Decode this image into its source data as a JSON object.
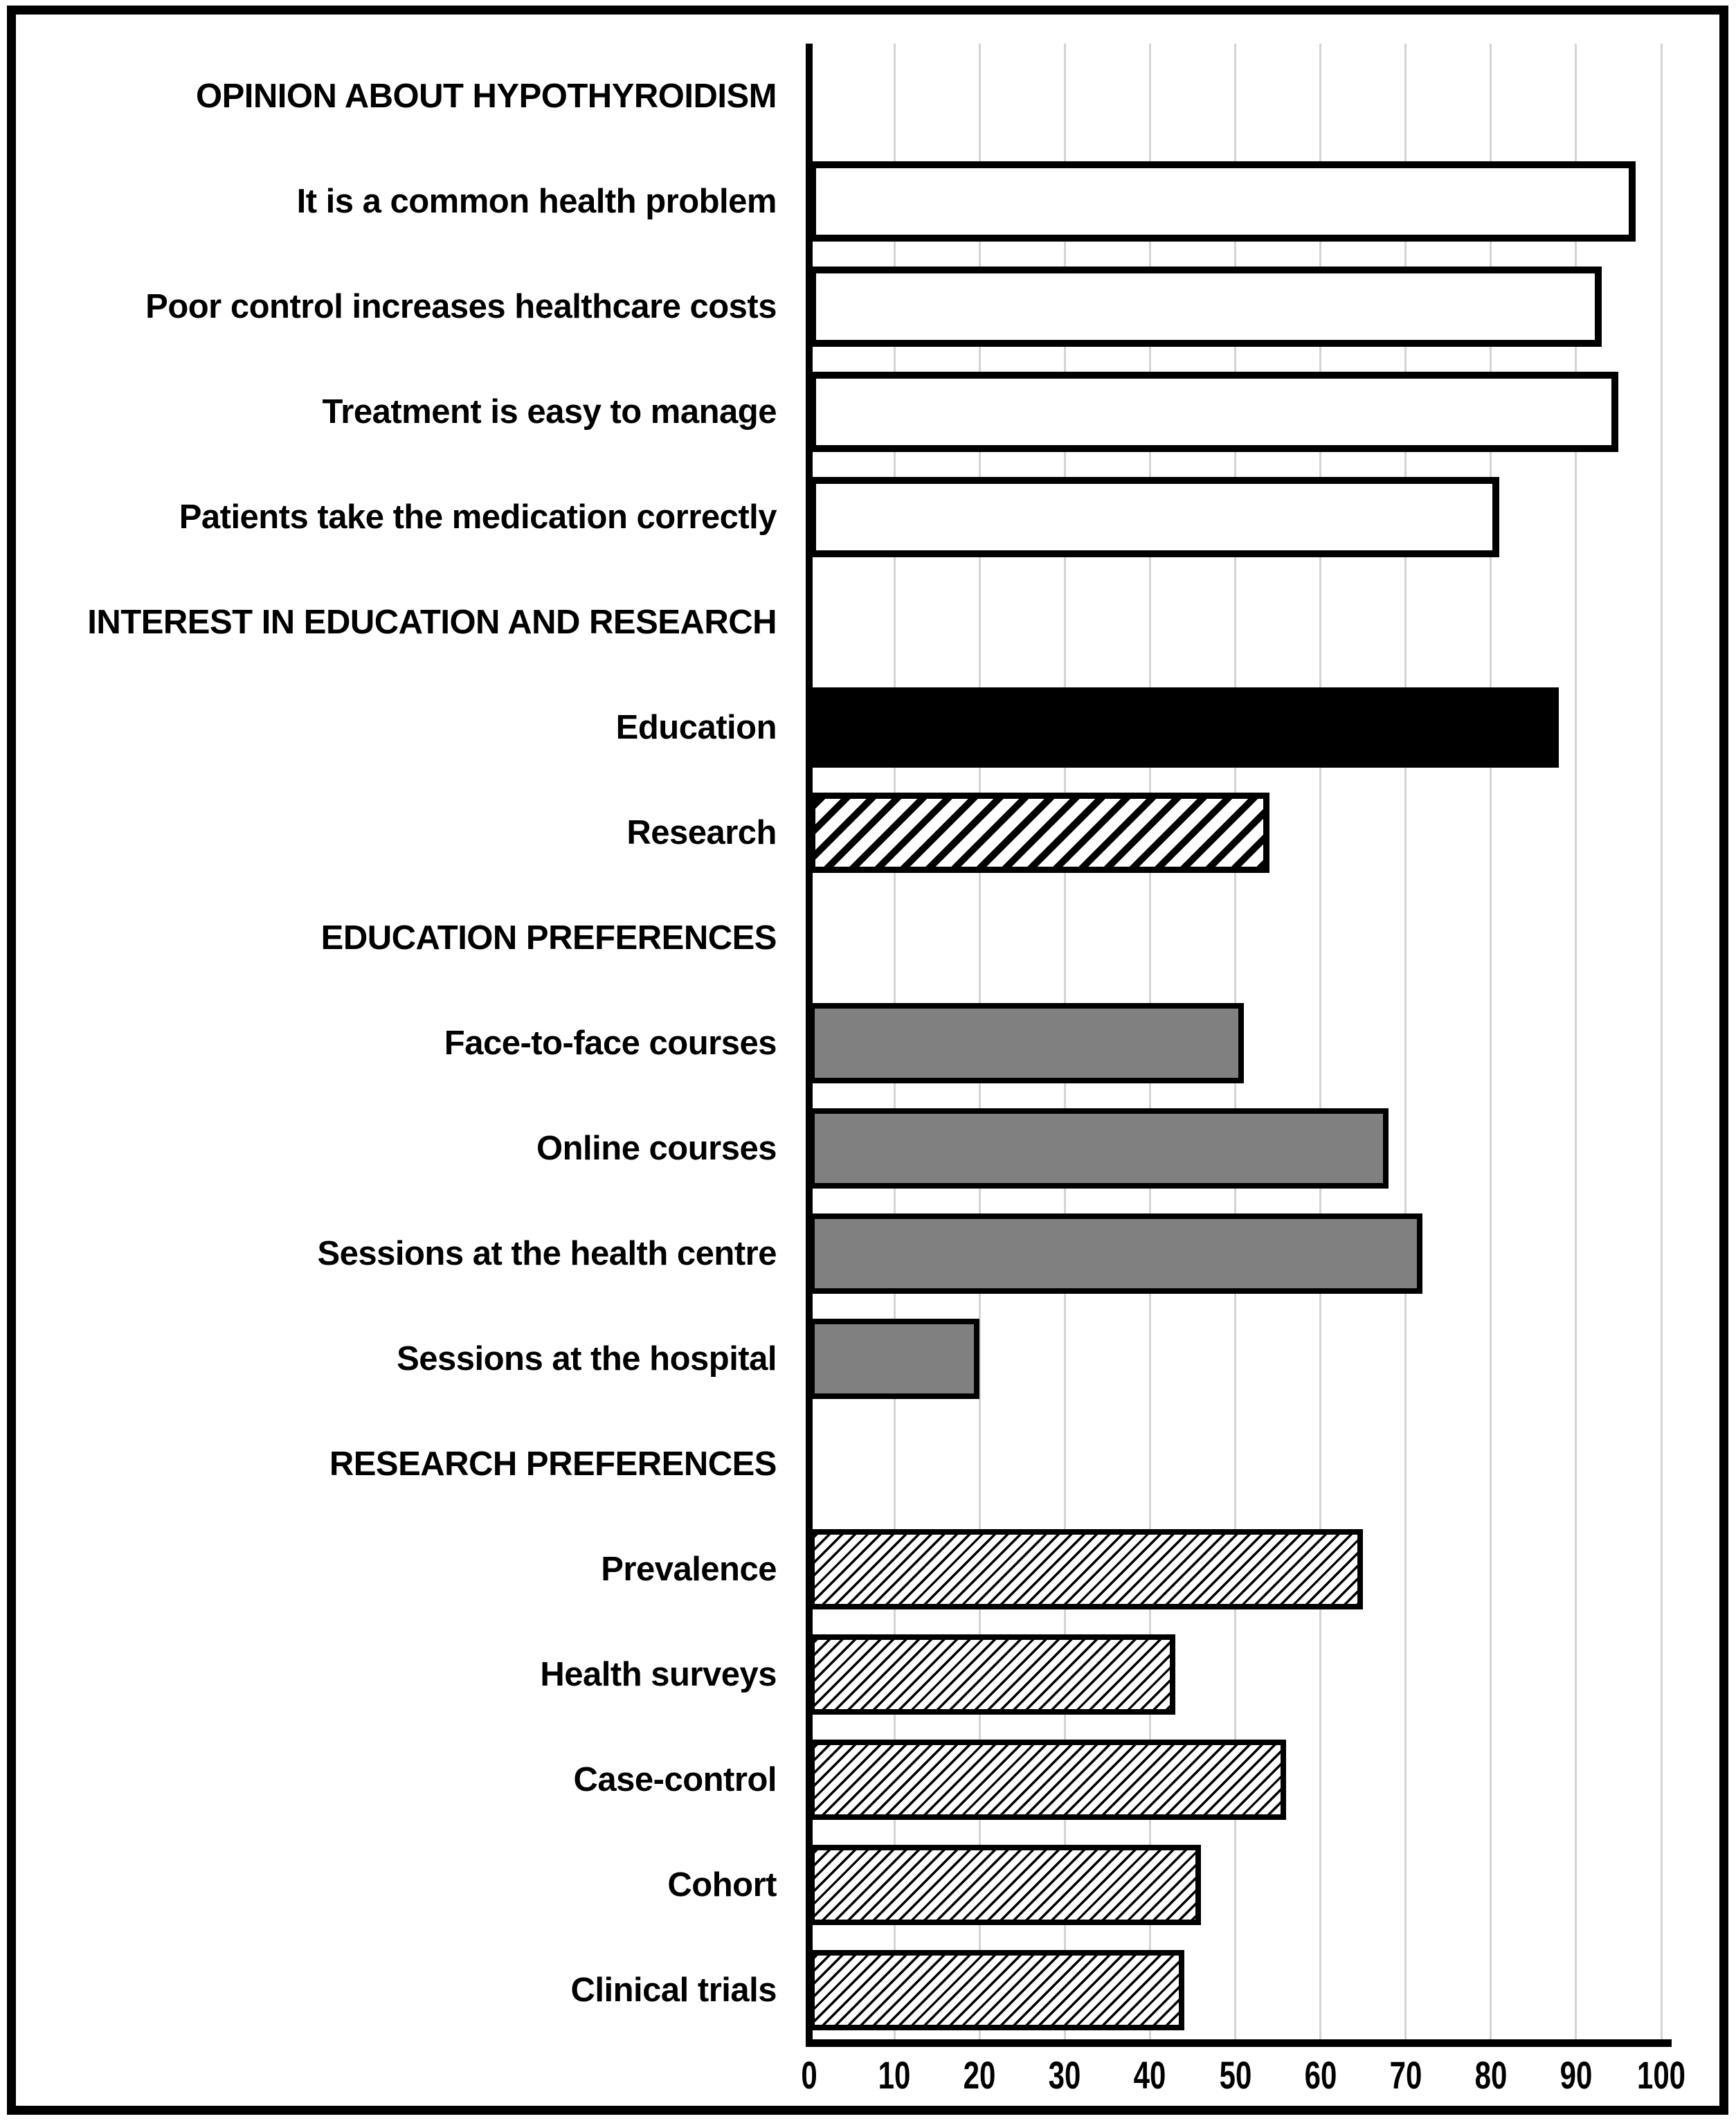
{
  "chart_data": {
    "type": "bar",
    "orientation": "horizontal",
    "title": "",
    "xlabel": "",
    "ylabel": "",
    "xlim": [
      0,
      100
    ],
    "x_ticks": [
      "0",
      "10",
      "20",
      "30",
      "40",
      "50",
      "60",
      "70",
      "80",
      "90",
      "100"
    ],
    "grid": "vertical, light gray, every 10 units",
    "legend": "none",
    "units": "percent",
    "groups": [
      {
        "header": "OPINION ABOUT HYPOTHYROIDISM",
        "items": [
          {
            "label": "It is a common health problem",
            "value": 97,
            "style": "outline-white"
          },
          {
            "label": "Poor control increases healthcare costs",
            "value": 93,
            "style": "outline-white"
          },
          {
            "label": "Treatment is easy to manage",
            "value": 95,
            "style": "outline-white"
          },
          {
            "label": "Patients take the medication correctly",
            "value": 81,
            "style": "outline-white"
          }
        ]
      },
      {
        "header": "INTEREST IN EDUCATION AND RESEARCH",
        "items": [
          {
            "label": "Education",
            "value": 88,
            "style": "solid-black"
          },
          {
            "label": "Research",
            "value": 54,
            "style": "hatch-bold"
          }
        ]
      },
      {
        "header": "EDUCATION PREFERENCES",
        "items": [
          {
            "label": "Face-to-face courses",
            "value": 51,
            "style": "solid-gray"
          },
          {
            "label": "Online courses",
            "value": 68,
            "style": "solid-gray"
          },
          {
            "label": "Sessions at the health centre",
            "value": 72,
            "style": "solid-gray"
          },
          {
            "label": "Sessions at the hospital",
            "value": 20,
            "style": "solid-gray"
          }
        ]
      },
      {
        "header": "RESEARCH PREFERENCES",
        "items": [
          {
            "label": "Prevalence",
            "value": 65,
            "style": "hatch-fine"
          },
          {
            "label": "Health surveys",
            "value": 43,
            "style": "hatch-fine"
          },
          {
            "label": "Case-control",
            "value": 56,
            "style": "hatch-fine"
          },
          {
            "label": "Cohort",
            "value": 46,
            "style": "hatch-fine"
          },
          {
            "label": "Clinical trials",
            "value": 44,
            "style": "hatch-fine"
          }
        ]
      }
    ],
    "colors": {
      "background": "#ffffff",
      "bar_border": "#000000",
      "bar_fill_white": "#ffffff",
      "bar_fill_black": "#000000",
      "bar_fill_gray": "#808080",
      "gridline": "#d4d4d4",
      "axis": "#000000",
      "frame": "#000000",
      "text": "#000000"
    }
  }
}
